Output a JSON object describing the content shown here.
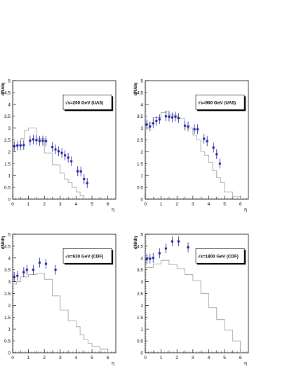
{
  "chart_data": [
    {
      "type": "scatter",
      "xlabel": "η",
      "ylabel": "dN/dη",
      "xlim": [
        0,
        6.5
      ],
      "ylim": [
        0,
        5
      ],
      "xticks": [
        "0",
        "1",
        "2",
        "3",
        "4",
        "5",
        "6"
      ],
      "yticks": [
        "0",
        "0.5",
        "1",
        "1.5",
        "2",
        "2.5",
        "3",
        "3.5",
        "4",
        "4.5",
        "5"
      ],
      "legend": {
        "radical": "√",
        "label": "s=200 GeV (UA5)"
      },
      "grid": false,
      "points": {
        "x": [
          0.1,
          0.3,
          0.5,
          0.7,
          1.1,
          1.3,
          1.5,
          1.7,
          1.9,
          2.1,
          2.5,
          2.7,
          2.9,
          3.1,
          3.3,
          3.5,
          3.7,
          4.1,
          4.3,
          4.5,
          4.7
        ],
        "y": [
          2.23,
          2.26,
          2.27,
          2.28,
          2.47,
          2.52,
          2.49,
          2.46,
          2.47,
          2.45,
          2.2,
          2.1,
          2.02,
          1.95,
          1.85,
          1.75,
          1.6,
          1.18,
          1.17,
          0.85,
          0.68
        ]
      },
      "histogram": {
        "edges": [
          0,
          0.25,
          0.5,
          0.75,
          1,
          1.5,
          2,
          2.5,
          3,
          3.25,
          3.5,
          3.75,
          4,
          4.25,
          4.5
        ],
        "values": [
          2.25,
          2.3,
          2.55,
          2.9,
          3.0,
          2.55,
          1.95,
          1.45,
          1.1,
          0.85,
          0.7,
          0.5,
          0.3,
          0.15
        ]
      }
    },
    {
      "type": "scatter",
      "xlabel": "η",
      "ylabel": "dN/dη",
      "xlim": [
        0,
        6.5
      ],
      "ylim": [
        0,
        5
      ],
      "xticks": [
        "0",
        "1",
        "2",
        "3",
        "4",
        "5",
        "6"
      ],
      "yticks": [
        "0",
        "0.5",
        "1",
        "1.5",
        "2",
        "2.5",
        "3",
        "3.5",
        "4",
        "4.5",
        "5"
      ],
      "legend": {
        "radical": "√",
        "label": "s=900 GeV (UA5)"
      },
      "grid": false,
      "points": {
        "x": [
          0.1,
          0.3,
          0.5,
          0.7,
          0.9,
          1.3,
          1.5,
          1.7,
          1.9,
          2.1,
          2.5,
          2.7,
          3.1,
          3.3,
          3.7,
          3.9,
          4.3,
          4.5,
          4.7
        ],
        "y": [
          3.15,
          3.07,
          3.2,
          3.3,
          3.37,
          3.5,
          3.48,
          3.45,
          3.48,
          3.42,
          3.1,
          3.07,
          2.95,
          2.95,
          2.55,
          2.45,
          2.18,
          1.9,
          1.5
        ]
      },
      "histogram": {
        "edges": [
          0,
          0.25,
          0.5,
          1,
          1.25,
          1.5,
          2,
          2.5,
          3,
          3.25,
          3.5,
          3.75,
          4,
          4.25,
          4.5,
          4.75,
          5,
          5.5,
          6
        ],
        "values": [
          3.0,
          3.2,
          3.45,
          3.65,
          3.72,
          3.55,
          3.4,
          3.0,
          2.7,
          2.5,
          2.0,
          1.85,
          1.55,
          1.2,
          0.9,
          0.7,
          0.3,
          0.1
        ]
      }
    },
    {
      "type": "scatter",
      "xlabel": "η",
      "ylabel": "dN/dη",
      "xlim": [
        0,
        6.5
      ],
      "ylim": [
        0,
        5
      ],
      "xticks": [
        "0",
        "1",
        "2",
        "3",
        "4",
        "5",
        "6"
      ],
      "yticks": [
        "0",
        "0.5",
        "1",
        "1.5",
        "2",
        "2.5",
        "3",
        "3.5",
        "4",
        "4.5",
        "5"
      ],
      "legend": {
        "radical": "√",
        "label": "s=630 GeV (CDF)"
      },
      "grid": false,
      "points": {
        "x": [
          0.1,
          0.3,
          0.7,
          0.9,
          1.3,
          1.7,
          2.1,
          2.7
        ],
        "y": [
          3.2,
          3.25,
          3.4,
          3.5,
          3.5,
          3.8,
          3.75,
          3.5
        ]
      },
      "histogram": {
        "edges": [
          0,
          0.25,
          0.5,
          1,
          1.5,
          2,
          2.5,
          3,
          3.5,
          4,
          4.25,
          4.5,
          4.75,
          5,
          5.5,
          6
        ],
        "values": [
          2.9,
          3.0,
          3.2,
          3.3,
          3.35,
          3.1,
          2.4,
          1.8,
          1.35,
          1.1,
          0.75,
          0.55,
          0.4,
          0.25,
          0.15
        ]
      }
    },
    {
      "type": "scatter",
      "xlabel": "η",
      "ylabel": "dN/dη",
      "xlim": [
        0,
        6.5
      ],
      "ylim": [
        0,
        5
      ],
      "xticks": [
        "0",
        "1",
        "2",
        "3",
        "4",
        "5",
        "6"
      ],
      "yticks": [
        "0",
        "0.5",
        "1",
        "1.5",
        "2",
        "2.5",
        "3",
        "3.5",
        "4",
        "4.5",
        "5"
      ],
      "legend": {
        "radical": "√",
        "label": "s=1800 GeV (CDF)"
      },
      "grid": false,
      "points": {
        "x": [
          0.1,
          0.3,
          0.5,
          0.9,
          1.3,
          1.7,
          2.1,
          2.7
        ],
        "y": [
          3.95,
          3.97,
          4.0,
          4.2,
          4.4,
          4.7,
          4.7,
          4.45
        ]
      },
      "histogram": {
        "edges": [
          0,
          0.5,
          1,
          1.5,
          2,
          2.5,
          3,
          3.5,
          4,
          4.5,
          5,
          5.5,
          6
        ],
        "values": [
          3.6,
          3.75,
          3.9,
          3.72,
          3.55,
          3.3,
          3.05,
          2.5,
          1.9,
          1.4,
          0.95,
          0.5
        ]
      }
    }
  ]
}
